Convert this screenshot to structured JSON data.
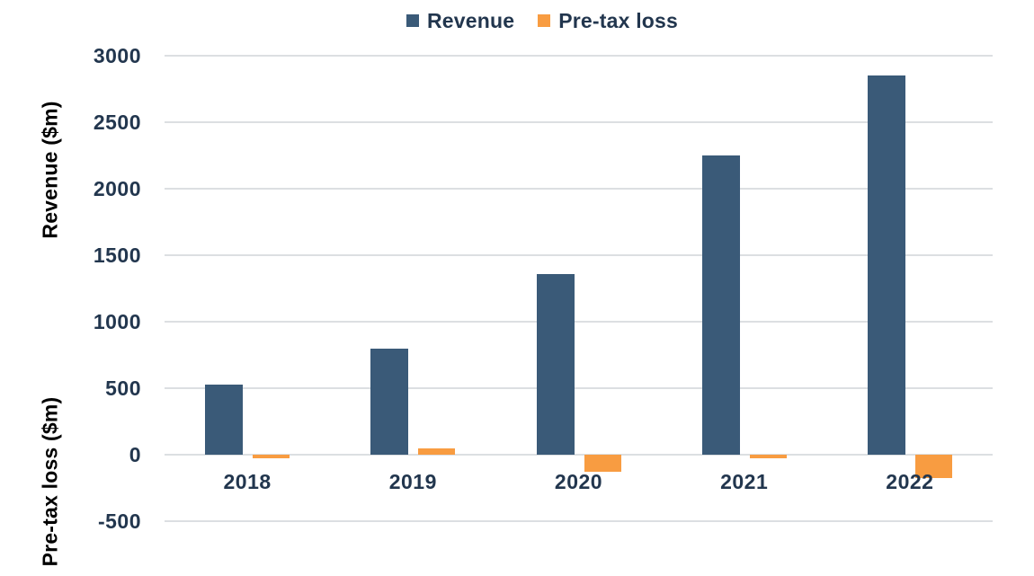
{
  "chart_data": {
    "type": "bar",
    "title": "",
    "categories": [
      "2018",
      "2019",
      "2020",
      "2021",
      "2022"
    ],
    "series": [
      {
        "name": "Revenue",
        "axis_label": "Revenue ($m)",
        "color": "#3A5A78",
        "values": [
          530,
          800,
          1360,
          2250,
          2850
        ]
      },
      {
        "name": "Pre-tax loss",
        "axis_label": "Pre-tax loss ($m)",
        "color": "#F89C41",
        "values": [
          -30,
          45,
          -130,
          -25,
          -175
        ]
      }
    ],
    "xlabel": "",
    "ylabel_top": "Revenue ($m)",
    "ylabel_bottom": "Pre-tax loss ($m)",
    "y_ticks": [
      3000,
      2500,
      2000,
      1500,
      1000,
      500,
      0,
      -500
    ],
    "ylim": [
      -900,
      3000
    ],
    "grid": true,
    "legend_position": "top",
    "colors": {
      "text": "#22364E",
      "gridline": "#DCDFE2",
      "background": "#FFFFFF"
    }
  }
}
